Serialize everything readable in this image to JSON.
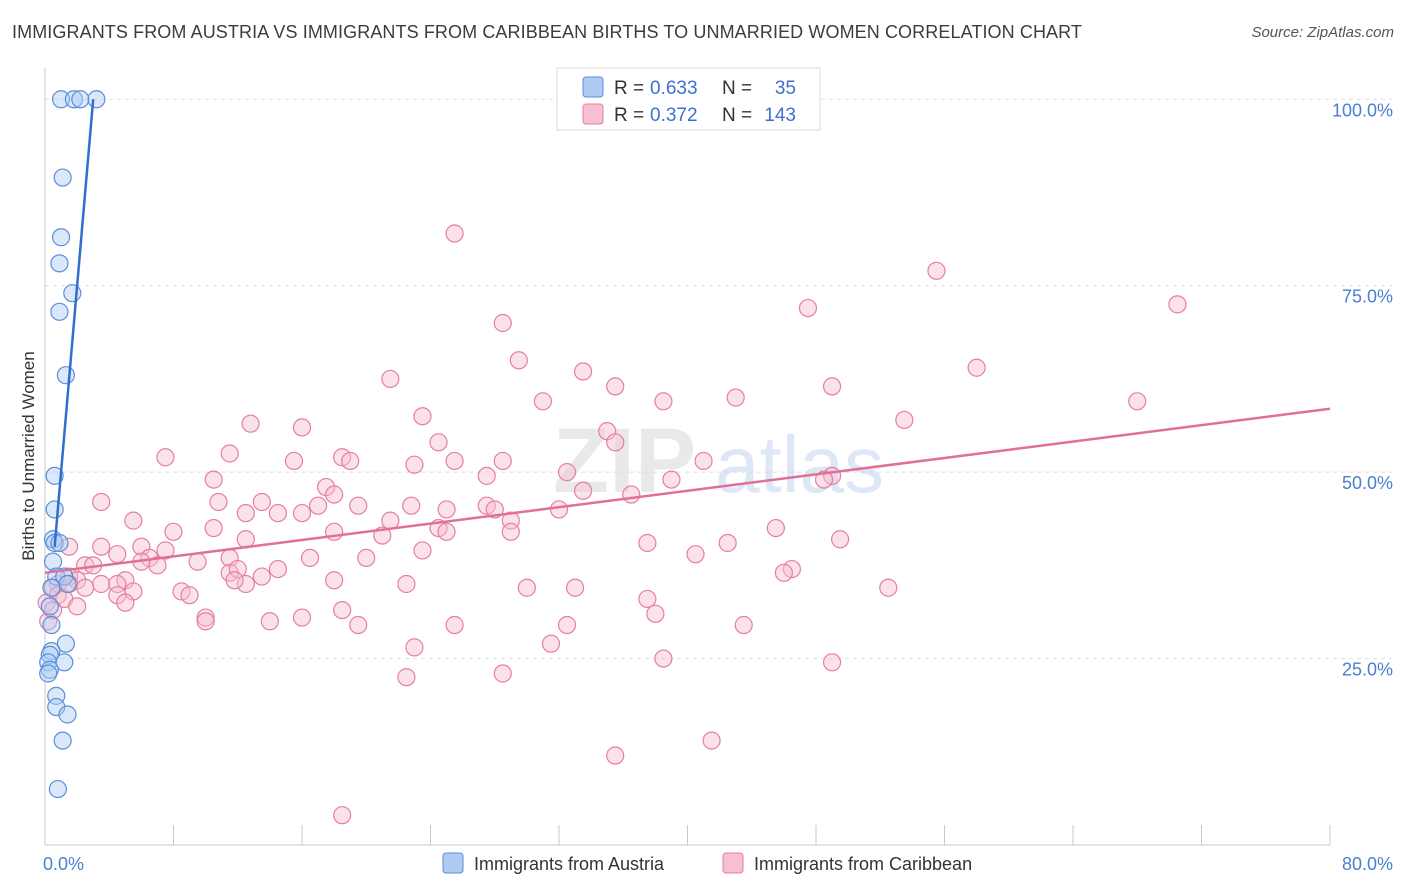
{
  "title": "IMMIGRANTS FROM AUSTRIA VS IMMIGRANTS FROM CARIBBEAN BIRTHS TO UNMARRIED WOMEN CORRELATION CHART",
  "source": "Source: ZipAtlas.com",
  "watermark": {
    "zip": "ZIP",
    "atlas": "atlas"
  },
  "legend_top": {
    "rows": [
      {
        "r_label": "R =",
        "r_value": "0.633",
        "n_label": "N =",
        "n_value": "35",
        "color": "#aecbf3",
        "stroke": "#5b8fd8"
      },
      {
        "r_label": "R =",
        "r_value": "0.372",
        "n_label": "N =",
        "n_value": "143",
        "color": "#f7bfd0",
        "stroke": "#e57fa0"
      }
    ]
  },
  "chart_data": {
    "type": "scatter",
    "title": "IMMIGRANTS FROM AUSTRIA VS IMMIGRANTS FROM CARIBBEAN BIRTHS TO UNMARRIED WOMEN CORRELATION CHART",
    "xlabel": "",
    "ylabel": "Births to Unmarried Women",
    "xlim": [
      0,
      80
    ],
    "ylim": [
      0,
      105
    ],
    "x_tick_labels": [
      {
        "value": 0,
        "label": "0.0%"
      },
      {
        "value": 80,
        "label": "80.0%"
      }
    ],
    "x_minor_ticks": [
      0,
      8,
      16,
      24,
      32,
      40,
      48,
      56,
      64,
      72,
      80
    ],
    "y_tick_labels": [
      {
        "value": 25,
        "label": "25.0%"
      },
      {
        "value": 50,
        "label": "50.0%"
      },
      {
        "value": 75,
        "label": "75.0%"
      },
      {
        "value": 100,
        "label": "100.0%"
      }
    ],
    "grid": "horizontal-dashed",
    "legend_position": "bottom-center",
    "series": [
      {
        "name": "Immigrants from Austria",
        "color": "#aecbf3",
        "stroke": "#5b8fd8",
        "line_color": "#2f6fd0",
        "trend": {
          "x": [
            0.6,
            3.0
          ],
          "y": [
            40,
            100
          ]
        },
        "points": [
          [
            1.0,
            100
          ],
          [
            1.8,
            100
          ],
          [
            3.2,
            100
          ],
          [
            2.2,
            100
          ],
          [
            1.1,
            89.5
          ],
          [
            1.0,
            81.5
          ],
          [
            0.9,
            78
          ],
          [
            1.7,
            74
          ],
          [
            0.9,
            71.5
          ],
          [
            1.3,
            63
          ],
          [
            0.6,
            49.5
          ],
          [
            0.6,
            45
          ],
          [
            0.5,
            41
          ],
          [
            0.6,
            40.5
          ],
          [
            0.9,
            40.5
          ],
          [
            0.5,
            38
          ],
          [
            0.7,
            36
          ],
          [
            1.2,
            36
          ],
          [
            1.4,
            35
          ],
          [
            0.4,
            34.5
          ],
          [
            0.3,
            32
          ],
          [
            0.4,
            29.5
          ],
          [
            1.3,
            27
          ],
          [
            0.4,
            26
          ],
          [
            0.3,
            25.5
          ],
          [
            0.2,
            24.5
          ],
          [
            1.2,
            24.5
          ],
          [
            0.3,
            23.5
          ],
          [
            0.2,
            23
          ],
          [
            0.7,
            20
          ],
          [
            0.7,
            18.5
          ],
          [
            1.4,
            17.5
          ],
          [
            1.1,
            14
          ],
          [
            0.8,
            7.5
          ]
        ]
      },
      {
        "name": "Immigrants from Caribbean",
        "color": "#f7bfd0",
        "stroke": "#e57fa0",
        "line_color": "#e0709a",
        "trend": {
          "x": [
            0,
            80
          ],
          "y": [
            36.5,
            58.5
          ]
        },
        "points": [
          [
            25.5,
            82
          ],
          [
            55.5,
            77
          ],
          [
            70.5,
            72.5
          ],
          [
            47.5,
            72
          ],
          [
            28.5,
            70
          ],
          [
            29.5,
            65
          ],
          [
            58,
            64
          ],
          [
            33.5,
            63.5
          ],
          [
            21.5,
            62.5
          ],
          [
            35.5,
            61.5
          ],
          [
            49,
            61.5
          ],
          [
            43,
            60
          ],
          [
            38.5,
            59.5
          ],
          [
            68,
            59.5
          ],
          [
            31,
            59.5
          ],
          [
            23.5,
            57.5
          ],
          [
            12.8,
            56.5
          ],
          [
            16,
            56
          ],
          [
            53.5,
            57
          ],
          [
            35,
            55.5
          ],
          [
            35.5,
            54
          ],
          [
            24.5,
            54
          ],
          [
            18.5,
            52
          ],
          [
            7.5,
            52
          ],
          [
            11.5,
            52.5
          ],
          [
            15.5,
            51.5
          ],
          [
            28.5,
            51.5
          ],
          [
            19,
            51.5
          ],
          [
            25.5,
            51.5
          ],
          [
            41,
            51.5
          ],
          [
            23,
            51
          ],
          [
            32.5,
            50
          ],
          [
            27.5,
            49.5
          ],
          [
            49,
            49.5
          ],
          [
            39,
            49
          ],
          [
            48.5,
            49
          ],
          [
            10.5,
            49
          ],
          [
            17.5,
            48
          ],
          [
            33.5,
            47.5
          ],
          [
            18,
            47
          ],
          [
            36.5,
            47
          ],
          [
            3.5,
            46
          ],
          [
            10.8,
            46
          ],
          [
            13.5,
            46
          ],
          [
            17,
            45.5
          ],
          [
            27.5,
            45.5
          ],
          [
            22.8,
            45.5
          ],
          [
            19.5,
            45.5
          ],
          [
            25,
            45
          ],
          [
            28,
            45
          ],
          [
            32,
            45
          ],
          [
            16,
            44.5
          ],
          [
            14.5,
            44.5
          ],
          [
            12.5,
            44.5
          ],
          [
            5.5,
            43.5
          ],
          [
            21.5,
            43.5
          ],
          [
            29,
            43.5
          ],
          [
            24.5,
            42.5
          ],
          [
            18,
            42
          ],
          [
            45.5,
            42.5
          ],
          [
            8,
            42
          ],
          [
            10.5,
            42.5
          ],
          [
            29,
            42
          ],
          [
            21,
            41.5
          ],
          [
            49.5,
            41
          ],
          [
            12.5,
            41
          ],
          [
            42.5,
            40.5
          ],
          [
            37.5,
            40.5
          ],
          [
            1.5,
            40
          ],
          [
            3.5,
            40
          ],
          [
            6,
            40
          ],
          [
            7.5,
            39.5
          ],
          [
            23.5,
            39.5
          ],
          [
            40.5,
            39
          ],
          [
            4.5,
            39
          ],
          [
            6.5,
            38.5
          ],
          [
            11.5,
            38.5
          ],
          [
            16.5,
            38.5
          ],
          [
            6,
            38
          ],
          [
            2.5,
            37.5
          ],
          [
            9.5,
            38
          ],
          [
            3,
            37.5
          ],
          [
            14.5,
            37
          ],
          [
            11.5,
            36.5
          ],
          [
            46.5,
            37
          ],
          [
            46,
            36.5
          ],
          [
            1.5,
            36
          ],
          [
            2,
            35.5
          ],
          [
            5,
            35.5
          ],
          [
            0.8,
            35
          ],
          [
            0.5,
            34.5
          ],
          [
            1.5,
            35
          ],
          [
            3.5,
            35
          ],
          [
            4.5,
            35
          ],
          [
            12.5,
            35
          ],
          [
            18,
            35.5
          ],
          [
            13.5,
            36
          ],
          [
            22.5,
            35
          ],
          [
            30,
            34.5
          ],
          [
            33,
            34.5
          ],
          [
            52.5,
            34.5
          ],
          [
            2.5,
            34.5
          ],
          [
            5.5,
            34
          ],
          [
            8.5,
            34
          ],
          [
            0.8,
            33.5
          ],
          [
            1.2,
            33
          ],
          [
            4.5,
            33.5
          ],
          [
            9,
            33.5
          ],
          [
            5,
            32.5
          ],
          [
            37.5,
            33
          ],
          [
            2,
            32
          ],
          [
            18.5,
            31.5
          ],
          [
            38,
            31
          ],
          [
            10,
            30.5
          ],
          [
            14,
            30
          ],
          [
            16,
            30.5
          ],
          [
            10,
            30
          ],
          [
            32.5,
            29.5
          ],
          [
            25.5,
            29.5
          ],
          [
            19.5,
            29.5
          ],
          [
            43.5,
            29.5
          ],
          [
            0.2,
            30
          ],
          [
            31.5,
            27
          ],
          [
            23,
            26.5
          ],
          [
            38.5,
            25
          ],
          [
            28.5,
            23
          ],
          [
            22.5,
            22.5
          ],
          [
            35.5,
            12
          ],
          [
            41.5,
            14
          ],
          [
            18.5,
            4
          ],
          [
            0.1,
            32.5
          ],
          [
            0.5,
            31.5
          ],
          [
            49,
            24.5
          ],
          [
            25,
            42
          ],
          [
            20,
            38.5
          ],
          [
            12,
            37
          ],
          [
            7,
            37.5
          ],
          [
            11.8,
            35.5
          ]
        ]
      }
    ]
  }
}
